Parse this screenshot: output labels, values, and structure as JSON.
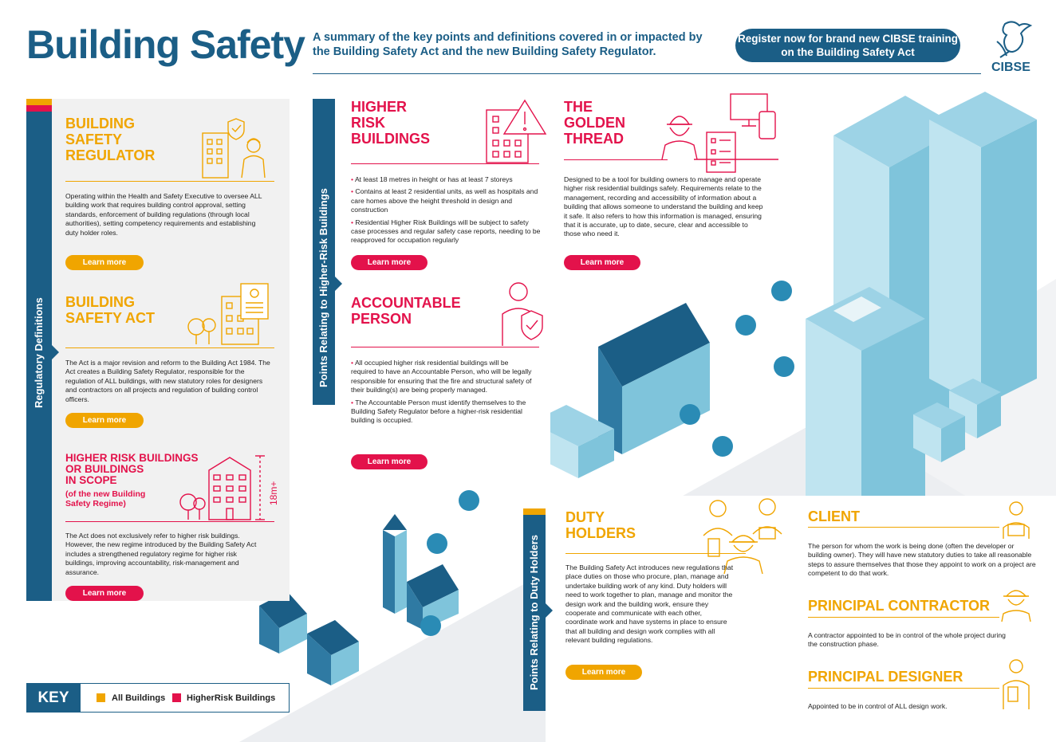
{
  "header": {
    "title": "Building Safety",
    "subtitle": "A summary of the key points and definitions covered in or impacted by the Building Safety Act and the new Building Safety Regulator.",
    "register_label": "Register now for brand new CIBSE training on the Building Safety Act",
    "logo_text": "CIBSE"
  },
  "sidebars": {
    "regulatory": "Regulatory Definitions",
    "higher_risk": "Points Relating to Higher-Risk Buildings",
    "duty": "Points Relating to Duty Holders"
  },
  "sections": {
    "bsr": {
      "title_lines": [
        "BUILDING",
        "SAFETY",
        "REGULATOR"
      ],
      "body": "Operating within the Health and Safety Executive to oversee ALL building work that requires building control approval, setting standards, enforcement of building regulations (through local authorities), setting competency requirements and establishing duty holder roles.",
      "button": "Learn more"
    },
    "bsa": {
      "title_lines": [
        "BUILDING",
        "SAFETY ACT"
      ],
      "body": "The Act is a major revision and reform to the Building Act 1984. The Act creates a Building Safety Regulator, responsible for the regulation of ALL buildings, with new statutory roles for designers and contractors on all projects and regulation of building control officers.",
      "button": "Learn more"
    },
    "hrb_scope": {
      "title_lines": [
        "HIGHER RISK BUILDINGS",
        "OR BUILDINGS",
        "IN SCOPE"
      ],
      "subtitle_lines": [
        "(of the new Building",
        "Safety Regime)"
      ],
      "height_label": "18m+",
      "body": "The Act does not exclusively refer to higher risk buildings. However, the new regime introduced by the Building Safety Act includes a strengthened regulatory regime for higher risk buildings, improving accountability, risk-management and assurance.",
      "button": "Learn more"
    },
    "hrb": {
      "title_lines": [
        "HIGHER",
        "RISK",
        "BUILDINGS"
      ],
      "bullets": [
        "At least 18 metres in height or has at least 7 storeys",
        "Contains at least 2 residential units, as well as hospitals and care homes above the height threshold in design and construction",
        "Residential Higher Risk Buildings will be subject to safety case processes and regular safety case reports, needing to be reapproved for occupation regularly"
      ],
      "button": "Learn more"
    },
    "golden": {
      "title_lines": [
        "THE",
        "GOLDEN",
        "THREAD"
      ],
      "body": "Designed to be a tool for building owners to manage and operate higher risk residential buildings safely. Requirements relate to the management, recording and accessibility of information about a building that allows someone to understand the building and keep it safe. It also refers to how this information is managed, ensuring that it is accurate, up to date, secure, clear and accessible to those who need it.",
      "button": "Learn more"
    },
    "accountable": {
      "title_lines": [
        "ACCOUNTABLE",
        "PERSON"
      ],
      "bullets": [
        "All occupied higher risk residential buildings will be required to have an Accountable Person, who will be legally responsible for ensuring that the fire and structural safety of their building(s) are being properly managed.",
        "The Accountable Person must identify themselves to the Building Safety Regulator before a higher-risk residential building is occupied."
      ],
      "button": "Learn more"
    },
    "duty": {
      "title_lines": [
        "DUTY",
        "HOLDERS"
      ],
      "body": "The Building Safety Act introduces new regulations that place duties on those who procure, plan, manage and undertake building work of any kind. Duty holders will need to work together to plan, manage and monitor the design work and the building work, ensure they cooperate and communicate with each other, coordinate work and have systems in place to ensure that all building and design work complies with all relevant building regulations.",
      "button": "Learn more"
    },
    "client": {
      "title": "CLIENT",
      "body": "The person for whom the work is being done (often the developer or building owner). They will have new statutory duties to take all reasonable steps to assure themselves that those they appoint to work on a project are competent to do that work."
    },
    "contractor": {
      "title": "PRINCIPAL CONTRACTOR",
      "body": "A contractor appointed to be in control of the whole project during the construction phase."
    },
    "designer": {
      "title": "PRINCIPAL DESIGNER",
      "body": "Appointed to be in control of ALL design work."
    }
  },
  "key": {
    "label": "KEY",
    "items": [
      {
        "label": "All Buildings",
        "color": "#f0a500"
      },
      {
        "label": "HigherRisk Buildings",
        "color": "#e3124b"
      }
    ]
  },
  "colors": {
    "navy": "#1b5e86",
    "yellow": "#f0a500",
    "red": "#e3124b",
    "panel": "#f1f1f1"
  }
}
